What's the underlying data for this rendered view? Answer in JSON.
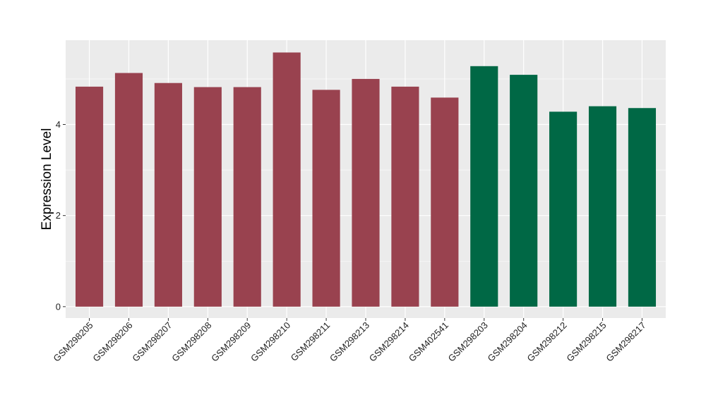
{
  "chart_data": {
    "type": "bar",
    "ylabel": "Expression Level",
    "xlabel": "",
    "title": "",
    "ylim": [
      -0.25,
      5.85
    ],
    "yticks": [
      0,
      2,
      4
    ],
    "grid": true,
    "categories": [
      "GSM298205",
      "GSM298206",
      "GSM298207",
      "GSM298208",
      "GSM298209",
      "GSM298210",
      "GSM298211",
      "GSM298213",
      "GSM298214",
      "GSM402541",
      "GSM298203",
      "GSM298204",
      "GSM298212",
      "GSM298215",
      "GSM298217"
    ],
    "values": [
      4.83,
      5.13,
      4.91,
      4.82,
      4.82,
      5.58,
      4.76,
      5.0,
      4.83,
      4.59,
      5.28,
      5.09,
      4.28,
      4.4,
      4.36
    ],
    "groups": [
      0,
      0,
      0,
      0,
      0,
      0,
      0,
      0,
      0,
      0,
      1,
      1,
      1,
      1,
      1
    ],
    "group_colors": [
      "#99424f",
      "#006845"
    ],
    "panel_color": "#ebebeb",
    "grid_color": "#ffffff"
  }
}
